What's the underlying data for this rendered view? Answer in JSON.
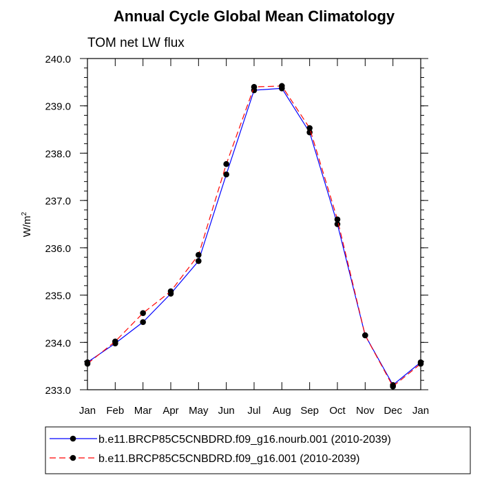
{
  "chart_data": {
    "type": "line",
    "title": "Annual Cycle Global Mean Climatology",
    "subtitle": "TOM net LW flux",
    "ylabel_main": "W/m",
    "ylabel_sup": "2",
    "xlabel": "",
    "categories": [
      "Jan",
      "Feb",
      "Mar",
      "Apr",
      "May",
      "Jun",
      "Jul",
      "Aug",
      "Sep",
      "Oct",
      "Nov",
      "Dec",
      "Jan"
    ],
    "ylim": [
      233.0,
      240.0
    ],
    "yticks": [
      "233.0",
      "234.0",
      "235.0",
      "236.0",
      "237.0",
      "238.0",
      "239.0",
      "240.0"
    ],
    "grid": false,
    "legend_position": "bottom",
    "series": [
      {
        "name": "b.e11.BRCP85C5CNBDRD.f09_g16.nourb.001 (2010-2039)",
        "color": "#0000ff",
        "dash": "solid",
        "marker": "dot",
        "values": [
          233.58,
          233.98,
          234.43,
          235.03,
          235.72,
          237.55,
          239.33,
          239.37,
          238.44,
          236.5,
          234.15,
          233.1,
          233.58
        ]
      },
      {
        "name": "b.e11.BRCP85C5CNBDRD.f09_g16.001 (2010-2039)",
        "color": "#ff0000",
        "dash": "dashed",
        "marker": "dot",
        "values": [
          233.55,
          234.02,
          234.62,
          235.08,
          235.85,
          237.77,
          239.4,
          239.42,
          238.53,
          236.6,
          234.15,
          233.07,
          233.55
        ]
      }
    ]
  }
}
